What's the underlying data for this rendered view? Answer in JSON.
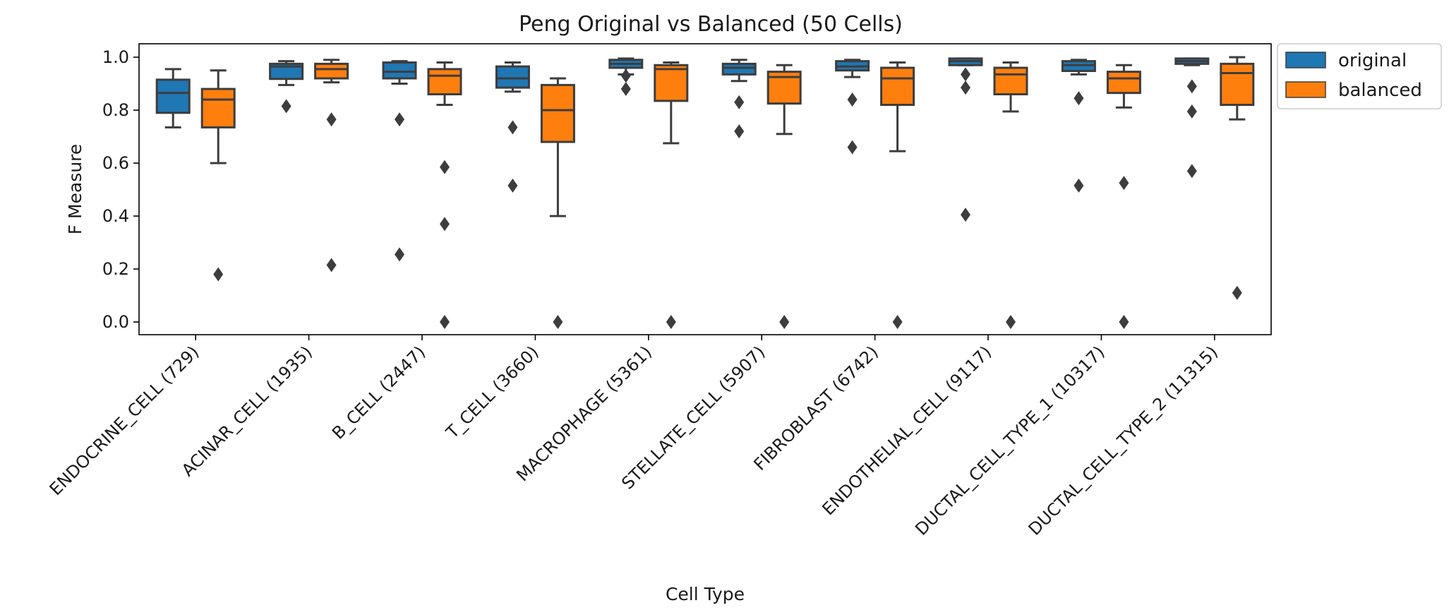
{
  "chart_data": {
    "type": "box",
    "title": "Peng Original vs Balanced (50 Cells)",
    "xlabel": "Cell Type",
    "ylabel": "F Measure",
    "ylim": [
      -0.05,
      1.05
    ],
    "yticks": [
      "0.0",
      "0.2",
      "0.4",
      "0.6",
      "0.8",
      "1.0"
    ],
    "grid": false,
    "legend_position": "outside-top-right",
    "categories": [
      "ENDOCRINE_CELL (729)",
      "ACINAR_CELL (1935)",
      "B_CELL (2447)",
      "T_CELL (3660)",
      "MACROPHAGE (5361)",
      "STELLATE_CELL (5907)",
      "FIBROBLAST (6742)",
      "ENDOTHELIAL_CELL (9117)",
      "DUCTAL_CELL_TYPE_1 (10317)",
      "DUCTAL_CELL_TYPE_2 (11315)"
    ],
    "series": [
      {
        "name": "original",
        "color": "#1f77b4",
        "boxes": [
          {
            "whislo": 0.735,
            "q1": 0.79,
            "med": 0.865,
            "q3": 0.915,
            "whishi": 0.955,
            "fliers": []
          },
          {
            "whislo": 0.895,
            "q1": 0.918,
            "med": 0.965,
            "q3": 0.975,
            "whishi": 0.985,
            "fliers": [
              0.815
            ]
          },
          {
            "whislo": 0.9,
            "q1": 0.92,
            "med": 0.945,
            "q3": 0.98,
            "whishi": 0.985,
            "fliers": [
              0.765,
              0.255
            ]
          },
          {
            "whislo": 0.87,
            "q1": 0.885,
            "med": 0.92,
            "q3": 0.965,
            "whishi": 0.98,
            "fliers": [
              0.735,
              0.515
            ]
          },
          {
            "whislo": 0.935,
            "q1": 0.96,
            "med": 0.975,
            "q3": 0.99,
            "whishi": 0.995,
            "fliers": [
              0.93,
              0.88
            ]
          },
          {
            "whislo": 0.91,
            "q1": 0.935,
            "med": 0.96,
            "q3": 0.975,
            "whishi": 0.99,
            "fliers": [
              0.83,
              0.72
            ]
          },
          {
            "whislo": 0.925,
            "q1": 0.95,
            "med": 0.965,
            "q3": 0.985,
            "whishi": 0.99,
            "fliers": [
              0.84,
              0.66
            ]
          },
          {
            "whislo": 0.97,
            "q1": 0.97,
            "med": 0.985,
            "q3": 0.995,
            "whishi": 0.995,
            "fliers": [
              0.935,
              0.885,
              0.405
            ]
          },
          {
            "whislo": 0.935,
            "q1": 0.948,
            "med": 0.97,
            "q3": 0.985,
            "whishi": 0.99,
            "fliers": [
              0.845,
              0.515
            ]
          },
          {
            "whislo": 0.97,
            "q1": 0.975,
            "med": 0.985,
            "q3": 0.995,
            "whishi": 0.995,
            "fliers": [
              0.89,
              0.795,
              0.57
            ]
          }
        ]
      },
      {
        "name": "balanced",
        "color": "#ff7f0e",
        "boxes": [
          {
            "whislo": 0.6,
            "q1": 0.735,
            "med": 0.84,
            "q3": 0.88,
            "whishi": 0.95,
            "fliers": [
              0.18
            ]
          },
          {
            "whislo": 0.905,
            "q1": 0.92,
            "med": 0.955,
            "q3": 0.975,
            "whishi": 0.99,
            "fliers": [
              0.765,
              0.215
            ]
          },
          {
            "whislo": 0.82,
            "q1": 0.86,
            "med": 0.93,
            "q3": 0.955,
            "whishi": 0.98,
            "fliers": [
              0.585,
              0.37,
              0.0
            ]
          },
          {
            "whislo": 0.4,
            "q1": 0.68,
            "med": 0.8,
            "q3": 0.895,
            "whishi": 0.92,
            "fliers": [
              0.0
            ]
          },
          {
            "whislo": 0.675,
            "q1": 0.835,
            "med": 0.955,
            "q3": 0.97,
            "whishi": 0.98,
            "fliers": [
              0.0
            ]
          },
          {
            "whislo": 0.71,
            "q1": 0.825,
            "med": 0.925,
            "q3": 0.945,
            "whishi": 0.97,
            "fliers": [
              0.0
            ]
          },
          {
            "whislo": 0.645,
            "q1": 0.82,
            "med": 0.92,
            "q3": 0.96,
            "whishi": 0.98,
            "fliers": [
              0.0
            ]
          },
          {
            "whislo": 0.795,
            "q1": 0.86,
            "med": 0.935,
            "q3": 0.96,
            "whishi": 0.98,
            "fliers": [
              0.0
            ]
          },
          {
            "whislo": 0.81,
            "q1": 0.865,
            "med": 0.92,
            "q3": 0.945,
            "whishi": 0.97,
            "fliers": [
              0.525,
              0.0
            ]
          },
          {
            "whislo": 0.765,
            "q1": 0.82,
            "med": 0.94,
            "q3": 0.975,
            "whishi": 1.0,
            "fliers": [
              0.11
            ]
          }
        ]
      }
    ]
  }
}
